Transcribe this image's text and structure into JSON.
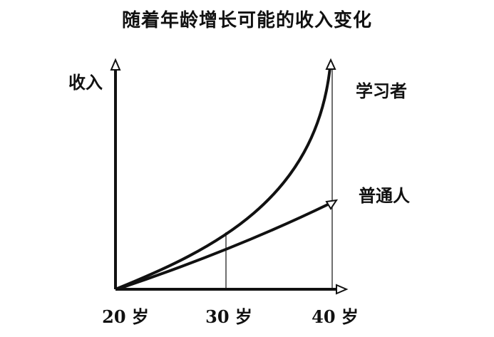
{
  "title": "随着年龄增长可能的收入变化",
  "y_axis_label": "收入",
  "curves": {
    "learner": "学习者",
    "ordinary": "普通人"
  },
  "x_ticks": [
    "20 岁",
    "30 岁",
    "40 岁"
  ]
}
